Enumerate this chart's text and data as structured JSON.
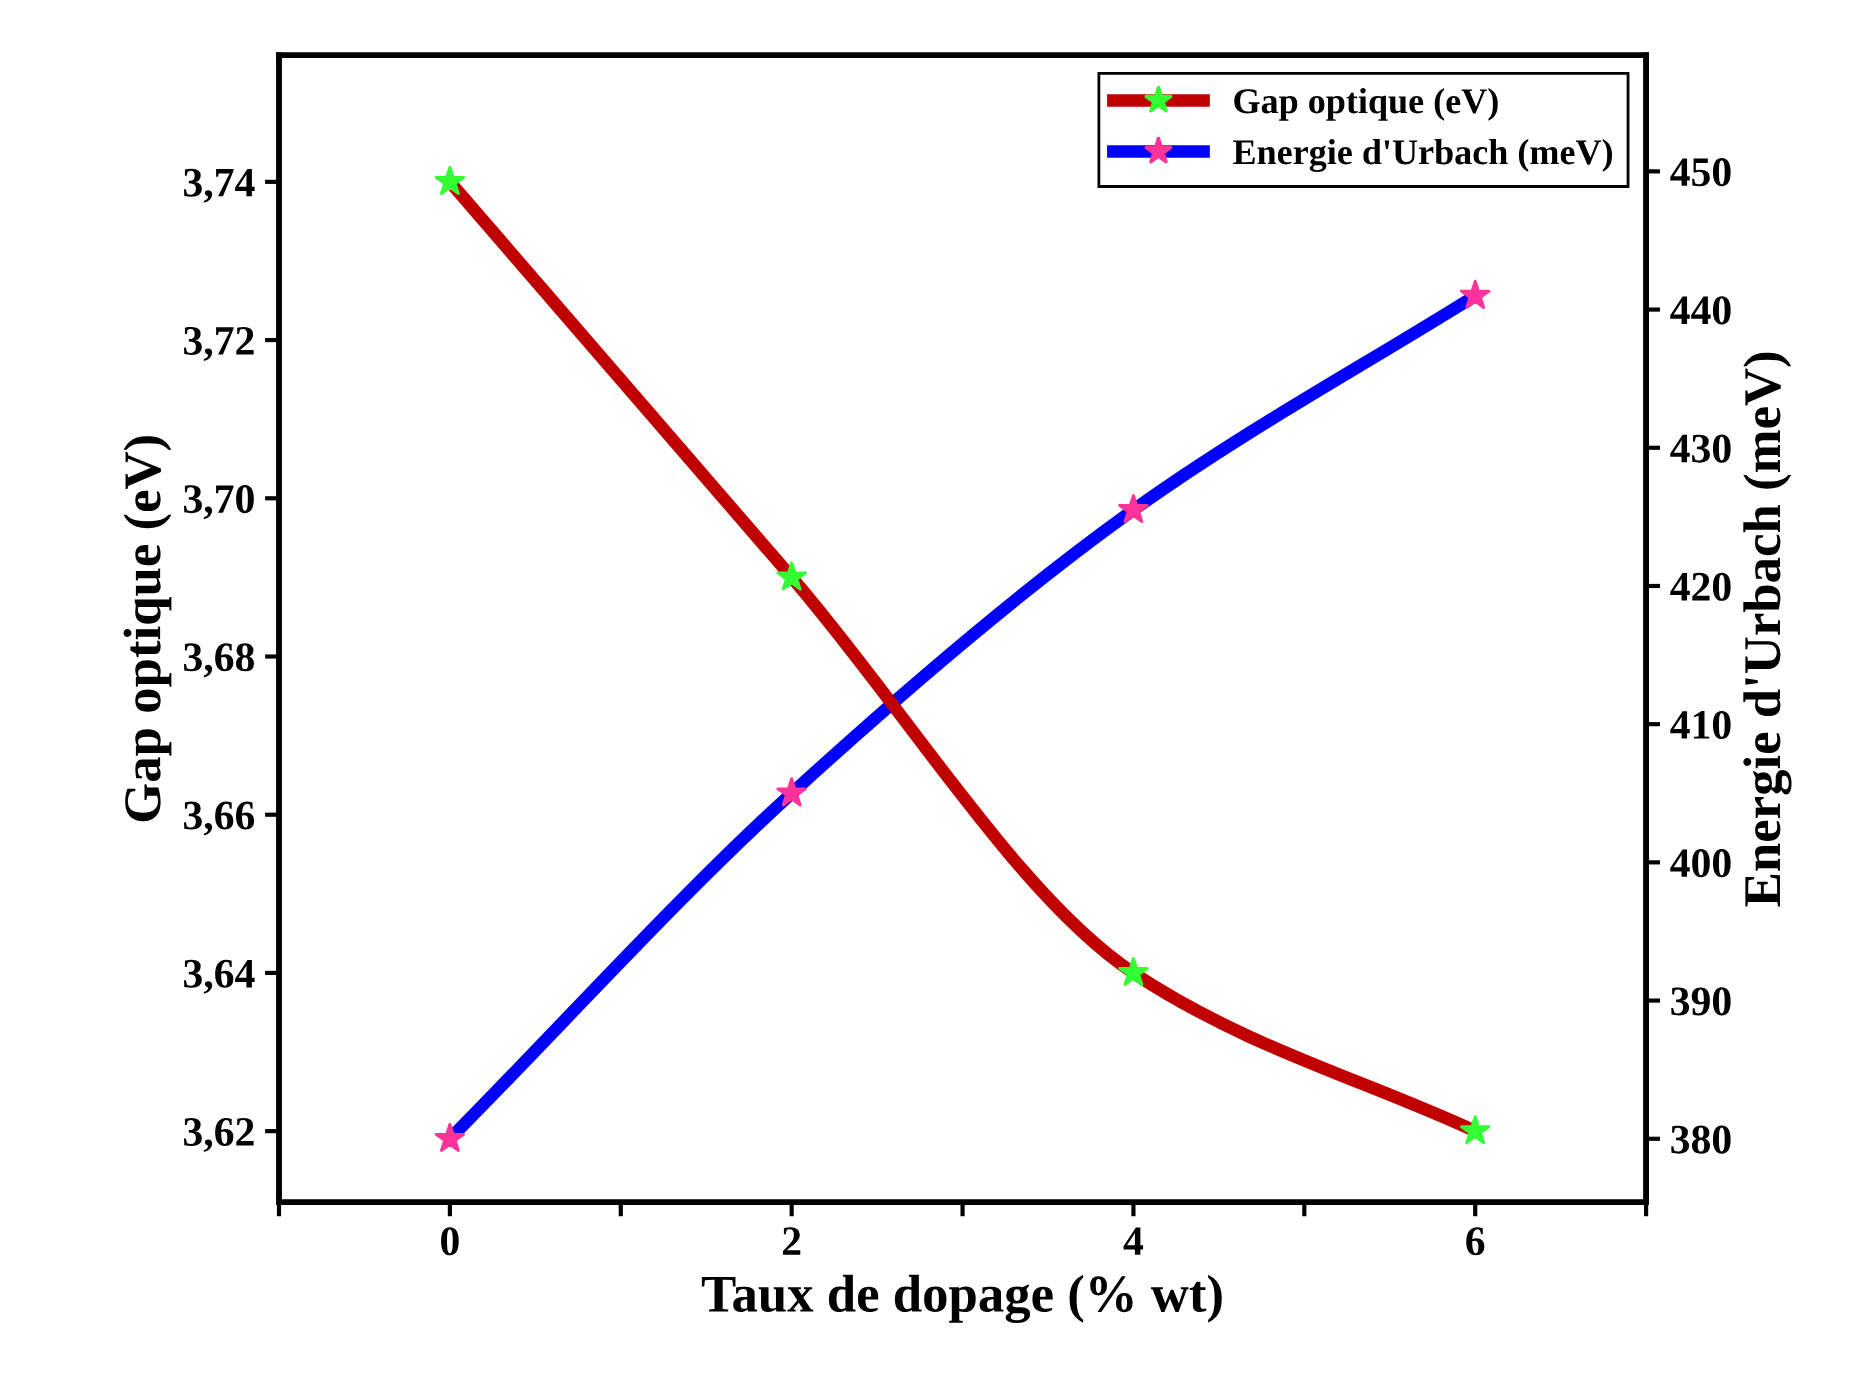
{
  "chart_data": {
    "type": "line",
    "xlabel": "Taux de dopage (% wt)",
    "ylabel": "Gap optique (eV)",
    "y2label": "Energie d'Urbach (meV)",
    "x": [
      0,
      2,
      4,
      6
    ],
    "series": [
      {
        "name": "Gap optique (eV)",
        "color": "#c00000",
        "colors": [
          "#33ff33",
          "#33ff33",
          "#33ff33",
          "#33ff33"
        ],
        "values": [
          3.74,
          3.69,
          3.64,
          3.62
        ]
      },
      {
        "name": "Energie d'Urbach (meV)",
        "color": "#0000ff",
        "colors": [
          "#ff3399",
          "#ff3399",
          "#ff3399",
          "#ff3399"
        ],
        "values": [
          380,
          405,
          425.5,
          441
        ],
        "axis": "y2"
      }
    ],
    "xlim": [
      -1,
      7
    ],
    "xticks": [
      {
        "value": -1,
        "label": null
      },
      0,
      {
        "value": 1,
        "label": null
      },
      2,
      {
        "value": 3,
        "label": null
      },
      4,
      {
        "value": 5,
        "label": null
      },
      6,
      {
        "value": 7,
        "label": null
      }
    ],
    "ylim": [
      3.611,
      3.756
    ],
    "yticks": [
      {
        "value": 3.62,
        "label": "3,62"
      },
      {
        "value": 3.64,
        "label": "3,64"
      },
      {
        "value": 3.66,
        "label": "3,66"
      },
      {
        "value": 3.68,
        "label": "3,68"
      },
      {
        "value": 3.7,
        "label": "3,70"
      },
      {
        "value": 3.72,
        "label": "3,72"
      },
      {
        "value": 3.74,
        "label": "3,74"
      }
    ],
    "y2lim": [
      375.4,
      458.4
    ],
    "y2ticks": [
      380,
      390,
      400,
      410,
      420,
      430,
      440,
      450
    ],
    "marker": "star",
    "line_style": "solid",
    "legend": "top right",
    "grid": false
  }
}
